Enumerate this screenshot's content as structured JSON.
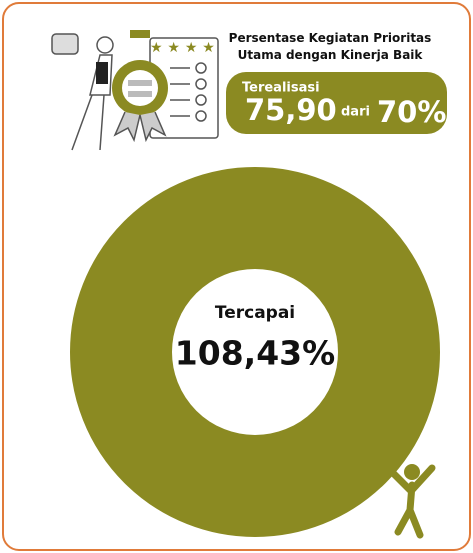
{
  "header": {
    "title_lines": [
      "Persentase Kegiatan Prioritas",
      "Utama dengan Kinerja Baik"
    ]
  },
  "summary": {
    "label": "Terealisasi",
    "realized": "75,90",
    "connector": "dari",
    "target": "70%"
  },
  "achievement": {
    "label": "Tercapai",
    "value": "108,43%"
  }
}
